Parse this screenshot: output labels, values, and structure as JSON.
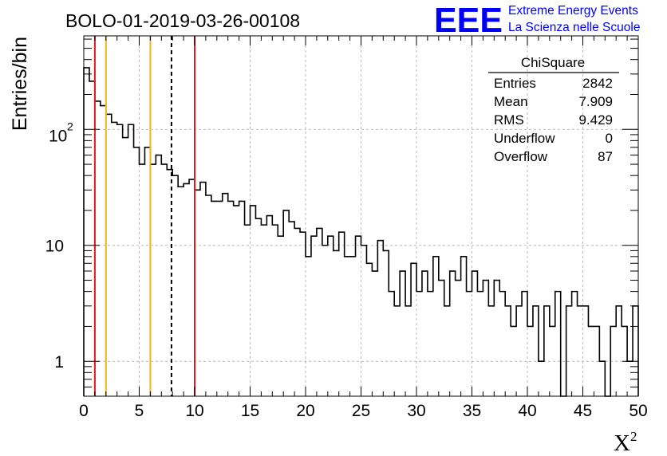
{
  "title": "BOLO-01-2019-03-26-00108",
  "logo": {
    "text": "EEE",
    "line1": "Extreme Energy Events",
    "line2": "La Scienza nelle Scuole",
    "color": "#0000ff"
  },
  "stats": {
    "name": "ChiSquare",
    "rows": [
      {
        "label": "Entries",
        "value": "2842"
      },
      {
        "label": "Mean",
        "value": "7.909"
      },
      {
        "label": "RMS",
        "value": "9.429"
      },
      {
        "label": "Underflow",
        "value": "0"
      },
      {
        "label": "Overflow",
        "value": "87"
      }
    ]
  },
  "chart_data": {
    "type": "histogram",
    "xlabel": "X",
    "xlabel_superscript": "2",
    "ylabel": "Entries/bin",
    "xlim": [
      0,
      50
    ],
    "ylim": [
      0.5,
      640
    ],
    "yscale": "log",
    "bin_width": 0.5,
    "x_ticks": [
      0,
      5,
      10,
      15,
      20,
      25,
      30,
      35,
      40,
      45,
      50
    ],
    "x_tick_labels": [
      "0",
      "5",
      "10",
      "15",
      "20",
      "25",
      "30",
      "35",
      "40",
      "45",
      "50"
    ],
    "y_ticks": [
      1,
      10,
      100
    ],
    "y_tick_labels": [
      "1",
      "10",
      "10",
      "2"
    ],
    "grid": true,
    "bin_values": [
      340,
      260,
      175,
      160,
      135,
      115,
      110,
      85,
      110,
      70,
      50,
      70,
      50,
      60,
      50,
      45,
      40,
      32,
      34,
      37,
      30,
      35,
      27,
      24,
      24,
      28,
      24,
      22,
      24,
      15,
      22,
      17,
      15,
      18,
      15,
      12,
      20,
      16,
      14,
      13,
      8,
      12,
      14,
      10,
      12,
      9,
      13,
      8,
      8,
      12,
      10,
      7,
      6,
      11,
      9,
      4,
      3,
      6,
      3,
      7,
      4,
      6,
      4,
      8,
      5,
      3,
      6,
      5,
      8,
      4,
      6,
      4,
      5,
      3,
      5,
      4,
      3,
      2,
      3,
      4,
      2,
      3,
      1,
      3,
      2,
      4,
      0,
      3,
      4,
      3,
      3,
      2,
      2,
      1,
      0,
      2,
      3,
      2,
      1,
      3
    ],
    "vertical_lines": [
      {
        "x": 1,
        "color": "#e8141e",
        "style": "solid"
      },
      {
        "x": 2,
        "color": "#f0b41e",
        "style": "solid"
      },
      {
        "x": 6,
        "color": "#f0b41e",
        "style": "solid"
      },
      {
        "x": 7.909,
        "color": "#000000",
        "style": "dashed"
      },
      {
        "x": 10,
        "color": "#e8141e",
        "style": "solid"
      }
    ]
  }
}
